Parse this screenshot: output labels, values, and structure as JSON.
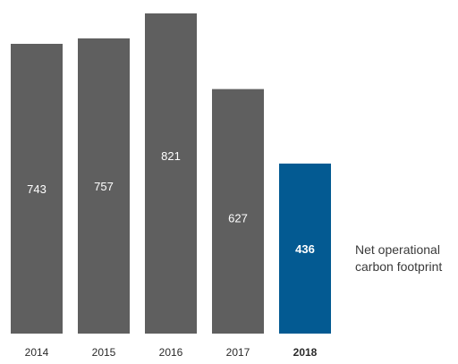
{
  "chart_data": {
    "type": "bar",
    "categories": [
      "2014",
      "2015",
      "2016",
      "2017",
      "2018"
    ],
    "values": [
      743,
      757,
      821,
      627,
      436
    ],
    "data_labels": [
      "743",
      "757",
      "821",
      "627",
      "436"
    ],
    "highlight_category": "2018",
    "bar_color": "#5f5f5f",
    "highlight_color": "#035a92",
    "label_color": "#ffffff",
    "tick_color": "#2b2b2b",
    "legend": {
      "line1": "Net operational",
      "line2": "carbon footprint",
      "placement": "right"
    },
    "title": "",
    "xlabel": "",
    "ylabel": "",
    "grid": false
  }
}
